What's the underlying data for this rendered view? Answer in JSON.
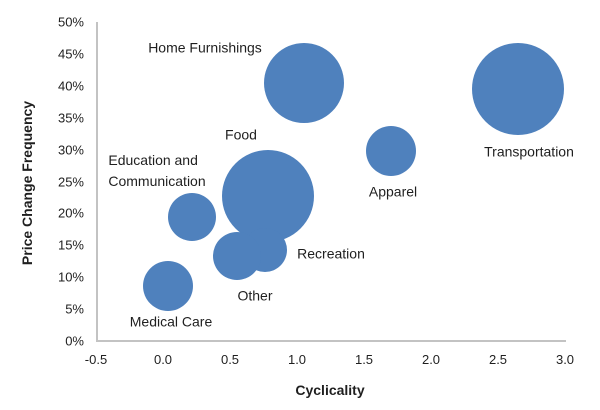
{
  "chart_data": {
    "type": "scatter",
    "subtype": "bubble",
    "title": "",
    "xlabel": "Cyclicality",
    "ylabel": "Price Change Frequency",
    "xlim": [
      -0.5,
      3.0
    ],
    "ylim": [
      0,
      50
    ],
    "grid": false,
    "legend": false,
    "colors": {
      "bubble_fill": "#4f81bd",
      "axis_line": "#c3c3c3",
      "text": "#1f1f1f"
    },
    "x_ticks": {
      "values": [
        -0.5,
        0.0,
        0.5,
        1.0,
        1.5,
        2.0,
        2.5,
        3.0
      ],
      "labels": [
        "-0.5",
        "0.0",
        "0.5",
        "1.0",
        "1.5",
        "2.0",
        "2.5",
        "3.0"
      ]
    },
    "y_ticks": {
      "values": [
        0,
        5,
        10,
        15,
        20,
        25,
        30,
        35,
        40,
        45,
        50
      ],
      "labels": [
        "0%",
        "5%",
        "10%",
        "15%",
        "20%",
        "25%",
        "30%",
        "35%",
        "40%",
        "45%",
        "50%"
      ]
    },
    "points": [
      {
        "label": "Home Furnishings",
        "x": 1.05,
        "y": 40.5,
        "r": 40
      },
      {
        "label": "Transportation",
        "x": 2.65,
        "y": 39.5,
        "r": 46
      },
      {
        "label": "Food",
        "x": 0.78,
        "y": 22.7,
        "r": 46
      },
      {
        "label": "Apparel",
        "x": 1.7,
        "y": 29.8,
        "r": 25
      },
      {
        "label": "Education and Communication",
        "x": 0.22,
        "y": 19.4,
        "r": 24
      },
      {
        "label": "Recreation",
        "x": 0.76,
        "y": 14.3,
        "r": 22
      },
      {
        "label": "Other",
        "x": 0.55,
        "y": 13.3,
        "r": 24
      },
      {
        "label": "Medical Care",
        "x": 0.04,
        "y": 8.6,
        "r": 25
      }
    ]
  }
}
